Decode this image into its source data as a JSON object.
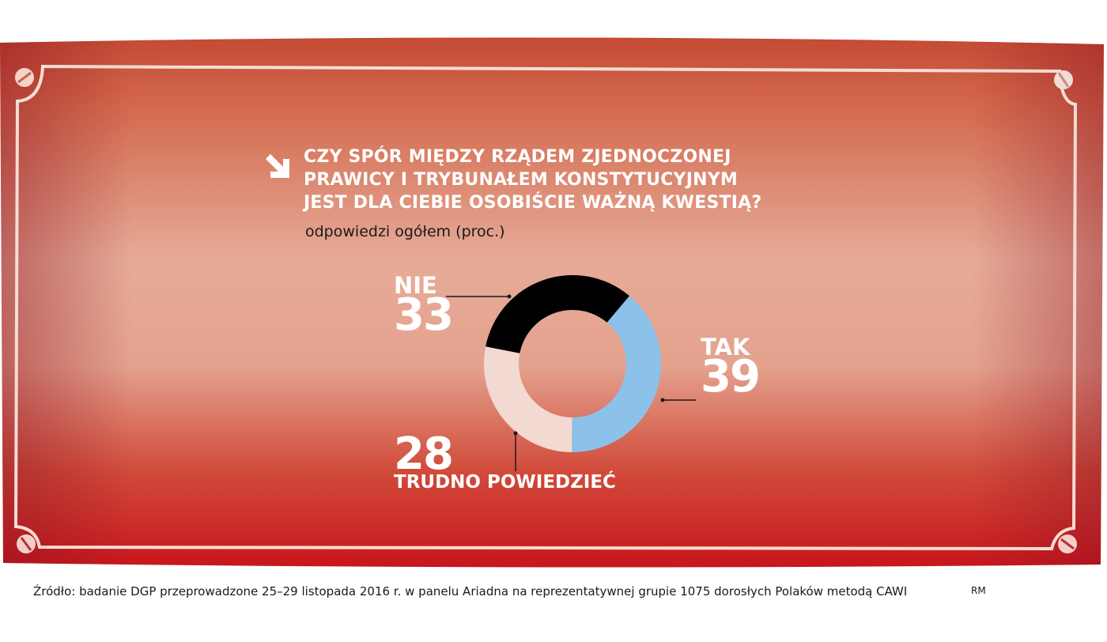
{
  "title_lines": [
    "CZY SPÓR MIĘDZY RZĄDEM ZJEDNOCZONEJ",
    "PRAWICY I TRYBUNAŁEM KONSTYTUCYJNYM",
    "JEST DLA CIEBIE OSOBIŚCIE WAŻNĄ KWESTIĄ?"
  ],
  "subtitle": "odpowiedzi ogółem (proc.)",
  "source": "Źródło: badanie DGP przeprowadzone 25–29 listopada 2016 r. w panelu Ariadna na reprezentatywnej grupie 1075 dorosłych Polaków metodą CAWI",
  "credit": "RM",
  "colors": {
    "background_top": "#d2674a",
    "background_mid": "#e6ab98",
    "background_bottom": "#c7161c",
    "frame": "#f7dcd2",
    "title": "#ffffff"
  },
  "icons": {
    "title_marker": "arrow-down-right-icon",
    "frame_corners": "screw-icon"
  },
  "chart_data": {
    "type": "pie",
    "variant": "donut",
    "title": "CZY SPÓR MIĘDZY RZĄDEM ZJEDNOCZONEJ PRAWICY I TRYBUNAŁEM KONSTYTUCYJNYM JEST DLA CIEBIE OSOBIŚCIE WAŻNĄ KWESTIĄ?",
    "subtitle": "odpowiedzi ogółem (proc.)",
    "slices": [
      {
        "label": "TAK",
        "value": 39,
        "display": "39",
        "color": "#8cc1ea"
      },
      {
        "label": "TRUDNO POWIEDZIEĆ",
        "value": 28,
        "display": "28",
        "color": "#f2d9d1"
      },
      {
        "label": "NIE",
        "value": 33,
        "display": "33",
        "color": "#000000"
      }
    ]
  }
}
